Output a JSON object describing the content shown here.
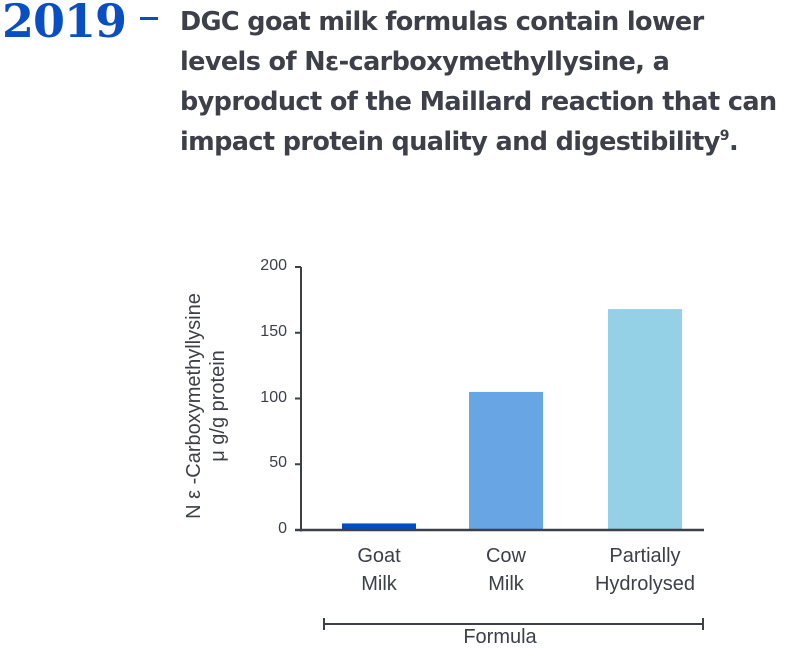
{
  "header": {
    "year": "2019",
    "headline_main": "DGC goat milk formulas contain lower levels of Nε-carboxymethyllysine, a byproduct of the Maillard reaction that can impact protein quality and digestibility",
    "headline_ref": "9",
    "headline_end": "."
  },
  "colors": {
    "year": "#0a4ec4",
    "text": "#3d4049",
    "goat_milk": "#004ec2",
    "cow_milk": "#68a5e5",
    "partially_hydrolysed": "#94d0e6"
  },
  "chart_data": {
    "type": "bar",
    "title": "",
    "categories": [
      "Goat Milk",
      "Cow Milk",
      "Partially Hydrolysed"
    ],
    "category_lines": [
      [
        "Goat",
        "Milk"
      ],
      [
        "Cow",
        "Milk"
      ],
      [
        "Partially",
        "Hydrolysed"
      ]
    ],
    "values": [
      5,
      105,
      168
    ],
    "colors": [
      "#004ec2",
      "#68a5e5",
      "#94d0e6"
    ],
    "xlabel": "Formula",
    "ylabel_line1": "N ε -Carboxymethyllysine",
    "ylabel_line2": "μ g/g protein",
    "ylim": [
      0,
      200
    ],
    "yticks": [
      0,
      50,
      100,
      150,
      200
    ],
    "grid": false,
    "legend": "none"
  }
}
